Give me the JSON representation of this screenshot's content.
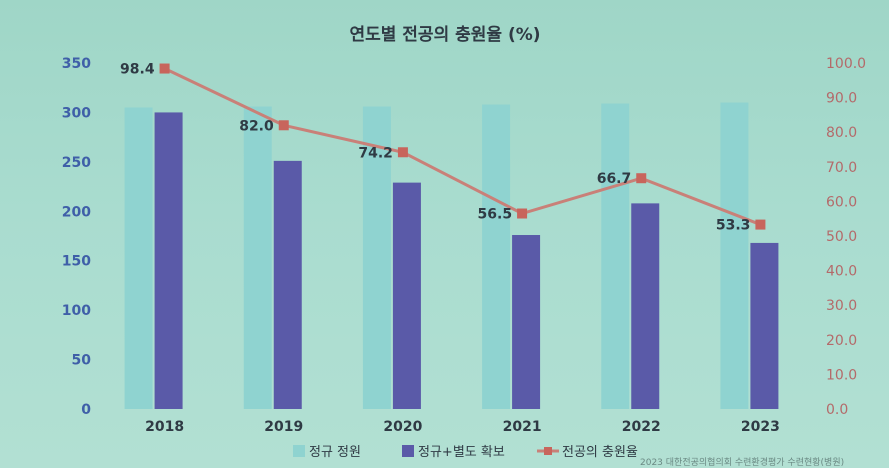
{
  "chart_data": {
    "type": "bar",
    "title": "연도별 전공의 충원율 (%)",
    "categories": [
      "2018",
      "2019",
      "2020",
      "2021",
      "2022",
      "2023"
    ],
    "series": [
      {
        "name": "정규 정원",
        "type": "bar",
        "axis": "left",
        "color": "#8fd3d0",
        "values": [
          305,
          306,
          306,
          308,
          309,
          310
        ]
      },
      {
        "name": "정규+별도 확보",
        "type": "bar",
        "axis": "left",
        "color": "#5a5aa8",
        "values": [
          300,
          251,
          229,
          176,
          208,
          168
        ]
      },
      {
        "name": "전공의 충원율",
        "type": "line",
        "axis": "right",
        "color": "#c98078",
        "values": [
          98.4,
          82.0,
          74.2,
          56.5,
          66.7,
          53.3
        ]
      }
    ],
    "data_labels": [
      "98.4",
      "82.0",
      "74.2",
      "56.5",
      "66.7",
      "53.3"
    ],
    "ylim_left": [
      0,
      350
    ],
    "yticks_left": [
      "0",
      "50",
      "100",
      "150",
      "200",
      "250",
      "300",
      "350"
    ],
    "ylim_right": [
      0,
      100
    ],
    "yticks_right": [
      "0.0",
      "10.0",
      "20.0",
      "30.0",
      "40.0",
      "50.0",
      "60.0",
      "70.0",
      "80.0",
      "90.0",
      "100.0"
    ],
    "grid": false,
    "legend_position": "bottom",
    "source_note": "2023 대한전공의협의회 수련환경평가 수련현황(병원)"
  }
}
